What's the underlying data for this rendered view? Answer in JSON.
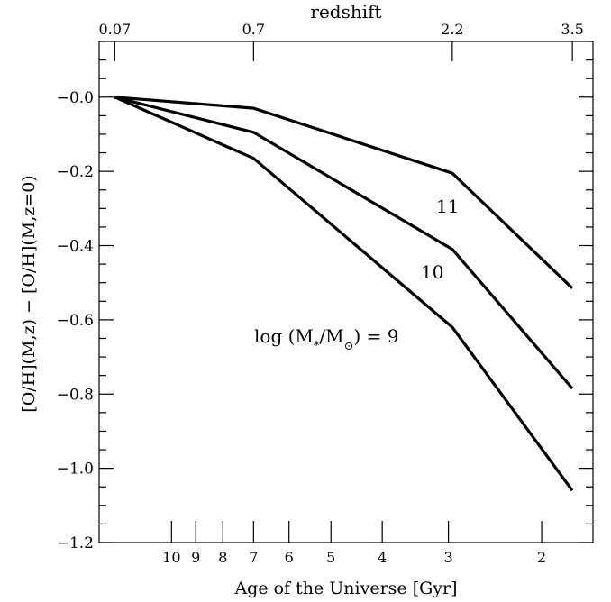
{
  "chart_data": {
    "type": "line",
    "xlabel": "Age of the Universe [Gyr]",
    "top_axis_label": "redshift",
    "ylabel": "[O/H](M,z) − [O/H](M,z=0)",
    "ylim": [
      -1.2,
      0.15
    ],
    "x_scale": "log (age)",
    "xlim": [
      13.7,
      1.6
    ],
    "y_ticks": [
      {
        "value": -0.0,
        "label": "−0.0"
      },
      {
        "value": -0.2,
        "label": "−0.2"
      },
      {
        "value": -0.4,
        "label": "−0.4"
      },
      {
        "value": -0.6,
        "label": "−0.6"
      },
      {
        "value": -0.8,
        "label": "−0.8"
      },
      {
        "value": -1.0,
        "label": "−1.0"
      },
      {
        "value": -1.2,
        "label": "−1.2"
      }
    ],
    "x_ticks": [
      {
        "value": 10,
        "label": "10"
      },
      {
        "value": 9,
        "label": "9"
      },
      {
        "value": 8,
        "label": "8"
      },
      {
        "value": 7,
        "label": "7"
      },
      {
        "value": 6,
        "label": "6"
      },
      {
        "value": 5,
        "label": "5"
      },
      {
        "value": 4,
        "label": "4"
      },
      {
        "value": 3,
        "label": "3"
      },
      {
        "value": 2,
        "label": "2"
      }
    ],
    "top_ticks": [
      {
        "value": 12.8,
        "label": "0.07"
      },
      {
        "value": 7.0,
        "label": "0.7"
      },
      {
        "value": 2.95,
        "label": "2.2"
      },
      {
        "value": 1.75,
        "label": "3.5"
      }
    ],
    "series": [
      {
        "name": "11",
        "x": [
          12.8,
          7.0,
          2.95,
          1.75
        ],
        "y": [
          0.0,
          -0.03,
          -0.205,
          -0.515
        ]
      },
      {
        "name": "10",
        "x": [
          12.8,
          7.0,
          2.95,
          1.75
        ],
        "y": [
          0.0,
          -0.095,
          -0.41,
          -0.785
        ]
      },
      {
        "name": "log (M*/M⊙) = 9",
        "x": [
          12.8,
          7.0,
          2.95,
          1.75
        ],
        "y": [
          0.0,
          -0.165,
          -0.62,
          -1.06
        ]
      }
    ],
    "grid": false,
    "legend": "none"
  }
}
